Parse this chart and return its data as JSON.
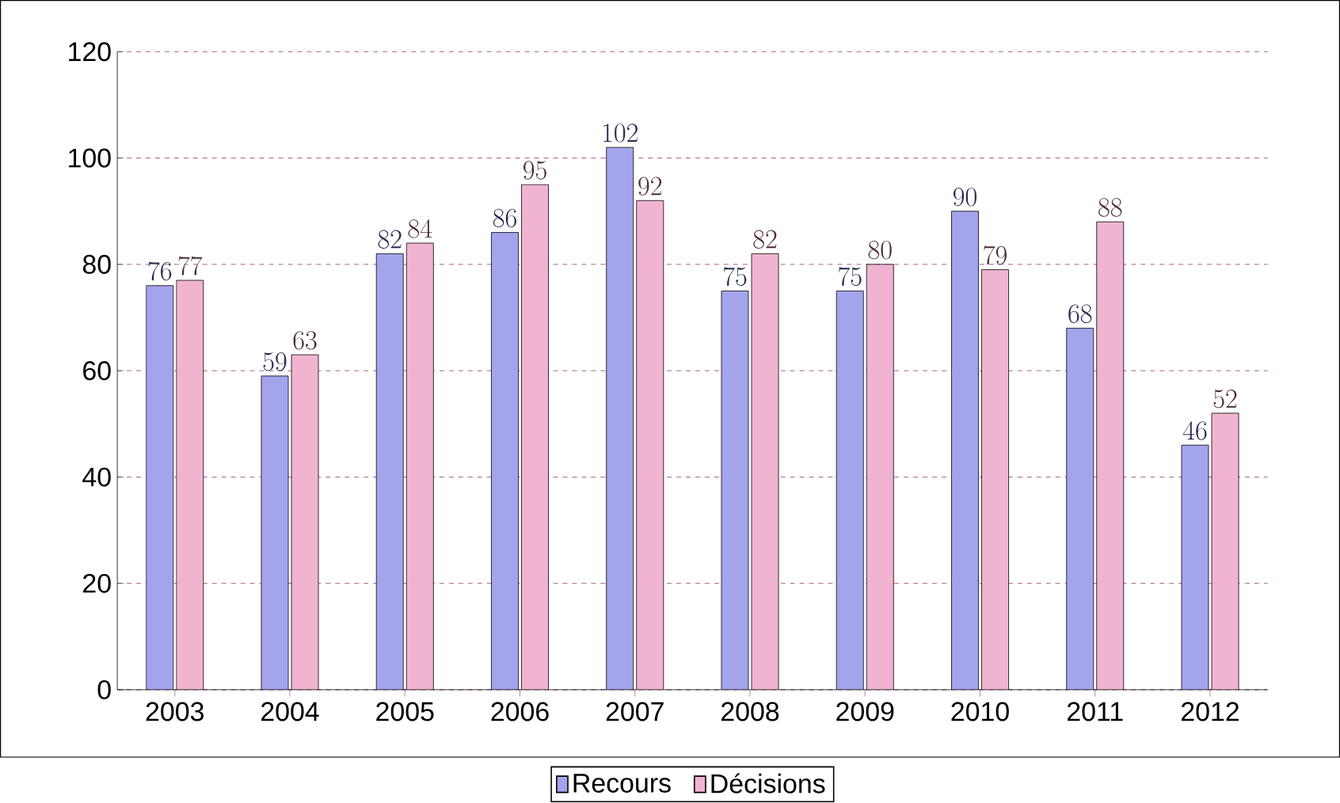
{
  "chart_data": {
    "type": "bar",
    "categories": [
      "2003",
      "2004",
      "2005",
      "2006",
      "2007",
      "2008",
      "2009",
      "2010",
      "2011",
      "2012"
    ],
    "series": [
      {
        "name": "Recours",
        "color": "#a4a4ec",
        "values": [
          76,
          59,
          82,
          86,
          102,
          75,
          75,
          90,
          68,
          46
        ]
      },
      {
        "name": "Décisions",
        "color": "#f0b4d0",
        "values": [
          77,
          63,
          84,
          95,
          92,
          82,
          80,
          79,
          88,
          52
        ]
      }
    ],
    "ylim": [
      0,
      120
    ],
    "yticks": [
      0,
      20,
      40,
      60,
      80,
      100,
      120
    ],
    "grid": "y",
    "legend": "bottom",
    "data_labels": true
  }
}
